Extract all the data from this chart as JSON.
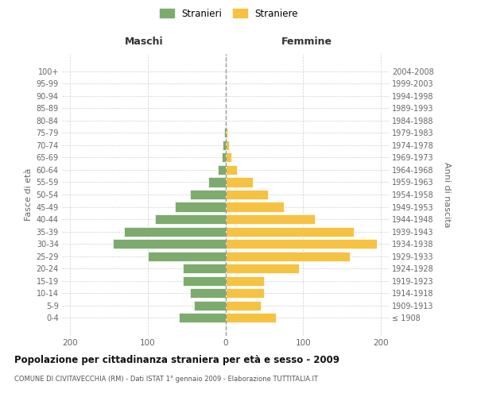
{
  "age_groups": [
    "100+",
    "95-99",
    "90-94",
    "85-89",
    "80-84",
    "75-79",
    "70-74",
    "65-69",
    "60-64",
    "55-59",
    "50-54",
    "45-49",
    "40-44",
    "35-39",
    "30-34",
    "25-29",
    "20-24",
    "15-19",
    "10-14",
    "5-9",
    "0-4"
  ],
  "birth_years": [
    "≤ 1908",
    "1909-1913",
    "1914-1918",
    "1919-1923",
    "1924-1928",
    "1929-1933",
    "1934-1938",
    "1939-1943",
    "1944-1948",
    "1949-1953",
    "1954-1958",
    "1959-1963",
    "1964-1968",
    "1969-1973",
    "1974-1978",
    "1979-1983",
    "1984-1988",
    "1989-1993",
    "1994-1998",
    "1999-2003",
    "2004-2008"
  ],
  "maschi": [
    0,
    0,
    0,
    0,
    0,
    2,
    4,
    5,
    10,
    22,
    45,
    65,
    90,
    130,
    145,
    100,
    55,
    55,
    45,
    40,
    60
  ],
  "femmine": [
    0,
    0,
    0,
    0,
    0,
    3,
    5,
    8,
    15,
    35,
    55,
    75,
    115,
    165,
    195,
    160,
    95,
    50,
    50,
    45,
    65
  ],
  "maschi_color": "#7dab6e",
  "femmine_color": "#f5c242",
  "bar_edge_color": "white",
  "background_color": "#ffffff",
  "grid_color": "#cccccc",
  "title": "Popolazione per cittadinanza straniera per età e sesso - 2009",
  "subtitle": "COMUNE DI CIVITAVECCHIA (RM) - Dati ISTAT 1° gennaio 2009 - Elaborazione TUTTITALIA.IT",
  "ylabel_left": "Fasce di età",
  "ylabel_right": "Anni di nascita",
  "header_maschi": "Maschi",
  "header_femmine": "Femmine",
  "legend_stranieri": "Stranieri",
  "legend_straniere": "Straniere",
  "xlim": 210,
  "dashed_line_color": "#999999",
  "text_color": "#666666",
  "title_color": "#111111",
  "subtitle_color": "#555555"
}
